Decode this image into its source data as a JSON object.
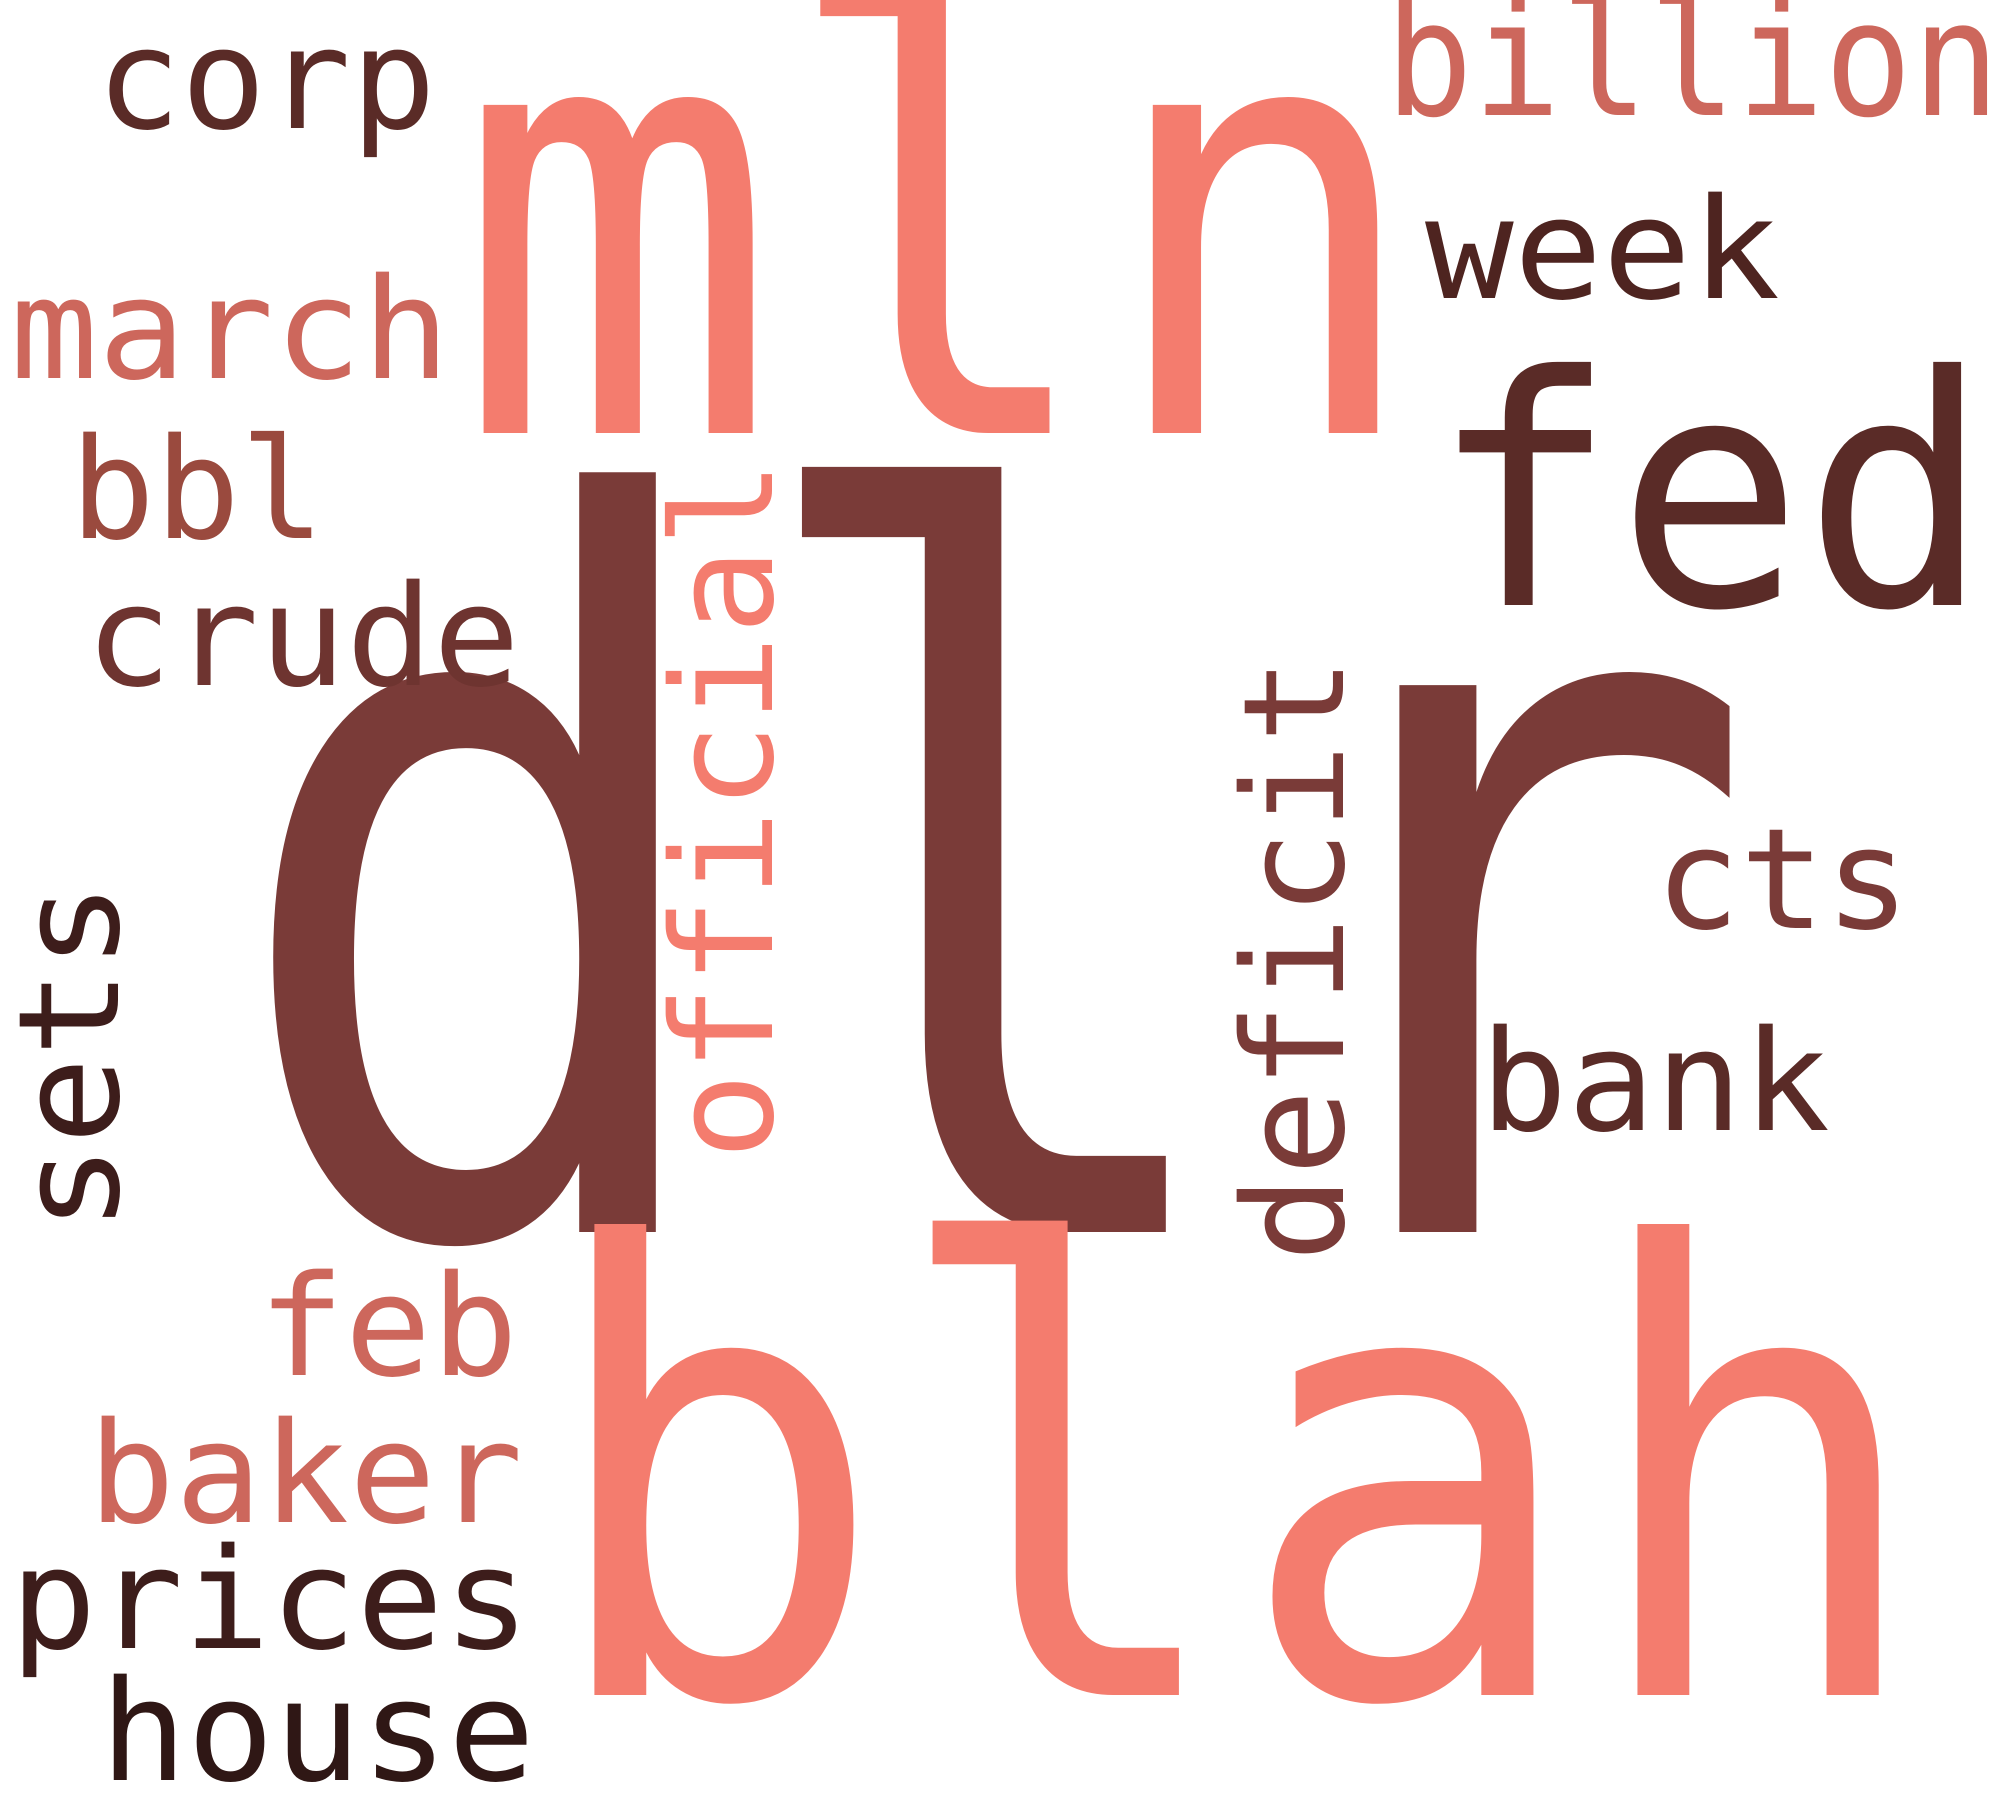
{
  "background": "#ffffff",
  "palette": {
    "salmon": "#f47c6e",
    "rose": "#cd675c",
    "brick": "#9a4a3e",
    "maroon": "#7a3b38",
    "dark_brown": "#5a2b27",
    "near_black": "#3d1d1b"
  },
  "words": [
    {
      "id": "dlr",
      "text": "dlr",
      "color": "#7a3b38"
    },
    {
      "id": "blah",
      "text": "blah",
      "color": "#f47c6e"
    },
    {
      "id": "mln",
      "text": "mln",
      "color": "#f47c6e"
    },
    {
      "id": "fed",
      "text": "fed",
      "color": "#5a2b27"
    },
    {
      "id": "billion",
      "text": "billion",
      "color": "#cd675c"
    },
    {
      "id": "corp",
      "text": "corp",
      "color": "#5a2b27"
    },
    {
      "id": "week",
      "text": "week",
      "color": "#4e2420"
    },
    {
      "id": "march",
      "text": "march",
      "color": "#cd675c"
    },
    {
      "id": "bbl",
      "text": "bbl",
      "color": "#9a4a3e"
    },
    {
      "id": "crude",
      "text": "crude",
      "color": "#6e3430"
    },
    {
      "id": "official",
      "text": "official",
      "color": "#f47c6e"
    },
    {
      "id": "deficit",
      "text": "deficit",
      "color": "#7a3b38"
    },
    {
      "id": "cts",
      "text": "cts",
      "color": "#7a3b38"
    },
    {
      "id": "bank",
      "text": "bank",
      "color": "#5a2b27"
    },
    {
      "id": "sets",
      "text": "sets",
      "color": "#3d1d1b"
    },
    {
      "id": "feb",
      "text": "feb",
      "color": "#cd675c"
    },
    {
      "id": "baker",
      "text": "baker",
      "color": "#cd675c"
    },
    {
      "id": "prices",
      "text": "prices",
      "color": "#3d1d1b"
    },
    {
      "id": "house",
      "text": "house",
      "color": "#2f1715"
    }
  ]
}
